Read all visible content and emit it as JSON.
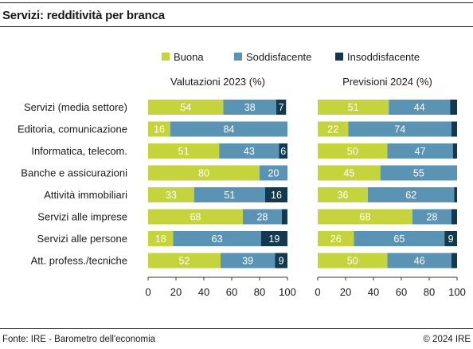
{
  "title": "Servizi: redditività per branca",
  "footer": {
    "source": "Fonte: IRE - Barometro dell'economia",
    "copyright": "© 2024 IRE"
  },
  "colors": {
    "buona": "#c5d33c",
    "soddisfacente": "#5a93b4",
    "insoddisfacente": "#13394f"
  },
  "chart_data": {
    "type": "bar",
    "orientation": "horizontal",
    "stacked": true,
    "legend": [
      "Buona",
      "Soddisfacente",
      "Insoddisfacente"
    ],
    "legend_position": "top-right",
    "categories": [
      "Servizi (media settore)",
      "Editoria, comunicazione",
      "Informatica, telecom.",
      "Banche e assicurazioni",
      "Attività immobiliari",
      "Servizi alle imprese",
      "Servizi alle persone",
      "Att. profess./tecniche"
    ],
    "panels": [
      {
        "title": "Valutazioni 2023 (%)",
        "series": [
          {
            "name": "Buona",
            "values": [
              54,
              16,
              51,
              80,
              33,
              68,
              18,
              52
            ]
          },
          {
            "name": "Soddisfacente",
            "values": [
              38,
              84,
              43,
              20,
              51,
              28,
              63,
              39
            ]
          },
          {
            "name": "Insoddisfacente",
            "values": [
              7,
              0,
              6,
              0,
              16,
              4,
              19,
              9
            ]
          }
        ],
        "labels": [
          [
            "54",
            "38",
            "7"
          ],
          [
            "16",
            "84",
            ""
          ],
          [
            "51",
            "43",
            "6"
          ],
          [
            "80",
            "20",
            ""
          ],
          [
            "33",
            "51",
            "16"
          ],
          [
            "68",
            "28",
            ""
          ],
          [
            "18",
            "63",
            "19"
          ],
          [
            "52",
            "39",
            "9"
          ]
        ]
      },
      {
        "title": "Previsioni 2024 (%)",
        "series": [
          {
            "name": "Buona",
            "values": [
              51,
              22,
              50,
              45,
              36,
              68,
              26,
              50
            ]
          },
          {
            "name": "Soddisfacente",
            "values": [
              44,
              74,
              47,
              55,
              62,
              28,
              65,
              46
            ]
          },
          {
            "name": "Insoddisfacente",
            "values": [
              5,
              4,
              3,
              0,
              2,
              4,
              9,
              4
            ]
          }
        ],
        "labels": [
          [
            "51",
            "44",
            ""
          ],
          [
            "22",
            "74",
            ""
          ],
          [
            "50",
            "47",
            ""
          ],
          [
            "45",
            "55",
            ""
          ],
          [
            "36",
            "62",
            ""
          ],
          [
            "68",
            "28",
            ""
          ],
          [
            "26",
            "65",
            "9"
          ],
          [
            "50",
            "46",
            ""
          ]
        ]
      }
    ],
    "xticks": [
      "0",
      "20",
      "40",
      "60",
      "80",
      "100"
    ],
    "xlim": [
      0,
      100
    ],
    "grid": false
  }
}
